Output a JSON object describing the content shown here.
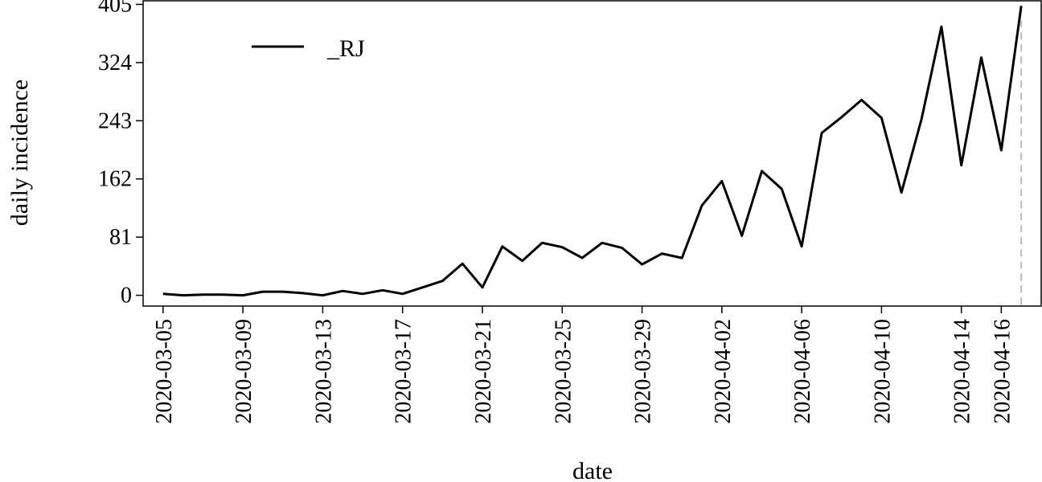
{
  "chart_data": {
    "type": "line",
    "title": "",
    "xlabel": "date",
    "ylabel": "daily incidence",
    "ylim": [
      -15,
      410
    ],
    "yticks": [
      0,
      81,
      162,
      243,
      324,
      405
    ],
    "xtick_labels": [
      "2020-03-05",
      "2020-03-09",
      "2020-03-13",
      "2020-03-17",
      "2020-03-21",
      "2020-03-25",
      "2020-03-29",
      "2020-04-02",
      "2020-04-06",
      "2020-04-10",
      "2020-04-14",
      "2020-04-16"
    ],
    "xlim": [
      "2020-03-04",
      "2020-04-18"
    ],
    "legend": {
      "placement": "top-left",
      "entries": [
        "_RJ"
      ]
    },
    "grid": false,
    "series": [
      {
        "name": "_RJ",
        "color": "#000000",
        "x": [
          "2020-03-05",
          "2020-03-06",
          "2020-03-07",
          "2020-03-08",
          "2020-03-09",
          "2020-03-10",
          "2020-03-11",
          "2020-03-12",
          "2020-03-13",
          "2020-03-14",
          "2020-03-15",
          "2020-03-16",
          "2020-03-17",
          "2020-03-18",
          "2020-03-19",
          "2020-03-20",
          "2020-03-21",
          "2020-03-22",
          "2020-03-23",
          "2020-03-24",
          "2020-03-25",
          "2020-03-26",
          "2020-03-27",
          "2020-03-28",
          "2020-03-29",
          "2020-03-30",
          "2020-03-31",
          "2020-04-01",
          "2020-04-02",
          "2020-04-03",
          "2020-04-04",
          "2020-04-05",
          "2020-04-06",
          "2020-04-07",
          "2020-04-08",
          "2020-04-09",
          "2020-04-10",
          "2020-04-11",
          "2020-04-12",
          "2020-04-13",
          "2020-04-14",
          "2020-04-15",
          "2020-04-16",
          "2020-04-17"
        ],
        "values": [
          2,
          0,
          1,
          1,
          0,
          5,
          5,
          3,
          0,
          6,
          2,
          7,
          2,
          11,
          20,
          44,
          11,
          68,
          48,
          73,
          67,
          52,
          73,
          66,
          43,
          58,
          52,
          125,
          159,
          83,
          173,
          148,
          68,
          226,
          248,
          272,
          247,
          143,
          245,
          374,
          181,
          331,
          202,
          403
        ]
      }
    ],
    "vline": {
      "x": "2020-04-17",
      "color": "#bbbbbb",
      "style": "dashed"
    }
  }
}
